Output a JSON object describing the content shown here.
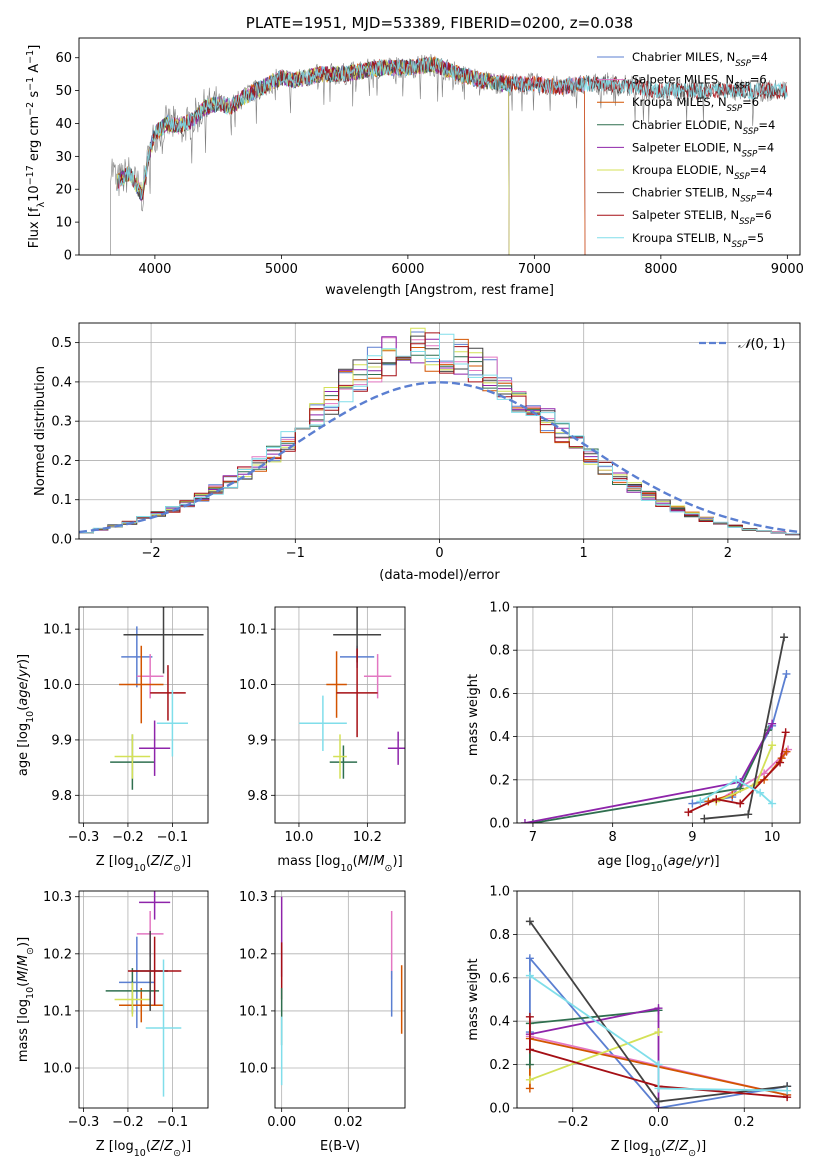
{
  "chart_data": [
    {
      "id": "spectrum",
      "type": "line",
      "title": "PLATE=1951, MJD=53389, FIBERID=0200, z=0.038",
      "xlabel": "wavelength [Angstrom, rest frame]",
      "ylabel": "Flux [f_λ 10^-17 erg cm^-2 s^-1 A^-1]",
      "xlim": [
        3400,
        9100
      ],
      "ylim": [
        0,
        66
      ],
      "xticks": [
        4000,
        5000,
        6000,
        7000,
        8000,
        9000
      ],
      "yticks": [
        0,
        10,
        20,
        30,
        40,
        50,
        60
      ],
      "observed_color": "#808080",
      "observed_range": [
        3650,
        9000
      ],
      "spectrum_anchors": {
        "x": [
          3650,
          3700,
          3800,
          3900,
          3950,
          4000,
          4100,
          4200,
          4300,
          4400,
          4500,
          4600,
          4700,
          4800,
          4900,
          5000,
          5100,
          5200,
          5300,
          5500,
          5800,
          6000,
          6200,
          6400,
          6600,
          6800,
          7000,
          7200,
          7400,
          7500,
          7600,
          8000,
          8500,
          9000
        ],
        "y": [
          28,
          22,
          25,
          18,
          30,
          37,
          40,
          39,
          41,
          45,
          46,
          45,
          48,
          50,
          52,
          54,
          53,
          54,
          55,
          55,
          57,
          57,
          58,
          55,
          53,
          52,
          52,
          51,
          52,
          52,
          52,
          50,
          50,
          50
        ]
      },
      "model_coverage": [
        {
          "name": "Chabrier MILES",
          "xmax": 7400
        },
        {
          "name": "Salpeter MILES",
          "xmax": 7400
        },
        {
          "name": "Kroupa MILES",
          "xmax": 7400
        },
        {
          "name": "Chabrier ELODIE",
          "xmax": 6800
        },
        {
          "name": "Salpeter ELODIE",
          "xmax": 6800
        },
        {
          "name": "Kroupa ELODIE",
          "xmax": 6800
        },
        {
          "name": "Chabrier STELIB",
          "xmax": 9000
        },
        {
          "name": "Salpeter STELIB",
          "xmax": 9000
        },
        {
          "name": "Kroupa STELIB",
          "xmax": 9000
        }
      ],
      "legend": [
        "Chabrier MILES, N_SSP=4",
        "Salpeter MILES, N_SSP=6",
        "Kroupa MILES, N_SSP=6",
        "Chabrier ELODIE, N_SSP=4",
        "Salpeter ELODIE, N_SSP=4",
        "Kroupa ELODIE, N_SSP=4",
        "Chabrier STELIB, N_SSP=4",
        "Salpeter STELIB, N_SSP=6",
        "Kroupa STELIB, N_SSP=5"
      ],
      "legend_placement": "top-right",
      "grid": false
    },
    {
      "id": "residuals",
      "type": "line",
      "xlabel": "(data-model)/error",
      "ylabel": "Normed distribution",
      "xlim": [
        -2.5,
        2.5
      ],
      "ylim": [
        0,
        0.55
      ],
      "xticks": [
        -2,
        -1,
        0,
        1,
        2
      ],
      "yticks": [
        0.0,
        0.1,
        0.2,
        0.3,
        0.4,
        0.5
      ],
      "grid": true,
      "legend": [
        "N(0,1)"
      ],
      "legend_placement": "top-right",
      "bin_edges_start": -2.5,
      "bin_width": 0.1,
      "histogram_base": [
        0.018,
        0.025,
        0.033,
        0.042,
        0.052,
        0.063,
        0.076,
        0.091,
        0.107,
        0.125,
        0.146,
        0.168,
        0.193,
        0.22,
        0.25,
        0.285,
        0.32,
        0.355,
        0.39,
        0.42,
        0.445,
        0.465,
        0.48,
        0.49,
        0.48,
        0.47,
        0.46,
        0.44,
        0.42,
        0.39,
        0.36,
        0.33,
        0.3,
        0.27,
        0.24,
        0.21,
        0.18,
        0.155,
        0.13,
        0.11,
        0.092,
        0.076,
        0.062,
        0.05,
        0.04,
        0.032,
        0.025,
        0.02,
        0.016,
        0.012
      ]
    },
    {
      "id": "z-vs-age",
      "type": "scatter",
      "xlabel": "Z [log10(Z/Z_sun)]",
      "ylabel": "age [log10(age/yr)]",
      "xlim": [
        -0.31,
        -0.02
      ],
      "ylim": [
        9.75,
        10.14
      ],
      "xticks": [
        -0.3,
        -0.2,
        -0.1
      ],
      "yticks": [
        9.8,
        9.9,
        10.0,
        10.1
      ],
      "grid": true,
      "points": [
        {
          "x": -0.18,
          "y": 10.05,
          "xerr": 0.035,
          "yerr": 0.055,
          "series": 0
        },
        {
          "x": -0.15,
          "y": 10.015,
          "xerr": 0.03,
          "yerr": 0.04,
          "series": 1
        },
        {
          "x": -0.17,
          "y": 10.0,
          "xerr": 0.05,
          "yerr": 0.07,
          "series": 2
        },
        {
          "x": -0.19,
          "y": 9.86,
          "xerr": 0.05,
          "yerr": 0.05,
          "series": 3
        },
        {
          "x": -0.14,
          "y": 9.885,
          "xerr": 0.035,
          "yerr": 0.05,
          "series": 4
        },
        {
          "x": -0.19,
          "y": 9.87,
          "xerr": 0.04,
          "yerr": 0.04,
          "series": 5
        },
        {
          "x": -0.12,
          "y": 10.09,
          "xerr": 0.09,
          "yerr": 0.07,
          "series": 6
        },
        {
          "x": -0.11,
          "y": 9.985,
          "xerr": 0.04,
          "yerr": 0.05,
          "series": 7
        },
        {
          "x": -0.1,
          "y": 9.93,
          "xerr": 0.035,
          "yerr": 0.06,
          "series": 8
        }
      ]
    },
    {
      "id": "mass-vs-age",
      "type": "scatter",
      "xlabel": "mass [log10(M/M_sun)]",
      "ylabel": "",
      "xlim": [
        9.93,
        10.31
      ],
      "ylim": [
        9.75,
        10.14
      ],
      "xticks": [
        10.0,
        10.2
      ],
      "yticks": [
        9.8,
        9.9,
        10.0,
        10.1
      ],
      "grid": true,
      "points": [
        {
          "x": 10.17,
          "y": 10.05,
          "xerr": 0.05,
          "yerr": 0.02,
          "series": 0
        },
        {
          "x": 10.23,
          "y": 10.015,
          "xerr": 0.04,
          "yerr": 0.04,
          "series": 1
        },
        {
          "x": 10.11,
          "y": 10.0,
          "xerr": 0.03,
          "yerr": 0.06,
          "series": 2
        },
        {
          "x": 10.13,
          "y": 9.86,
          "xerr": 0.04,
          "yerr": 0.03,
          "series": 3
        },
        {
          "x": 10.29,
          "y": 9.885,
          "xerr": 0.03,
          "yerr": 0.03,
          "series": 4
        },
        {
          "x": 10.12,
          "y": 9.87,
          "xerr": 0.02,
          "yerr": 0.04,
          "series": 5
        },
        {
          "x": 10.17,
          "y": 10.09,
          "xerr": 0.07,
          "yerr": 0.05,
          "series": 6
        },
        {
          "x": 10.17,
          "y": 9.985,
          "xerr": 0.06,
          "yerr": 0.08,
          "series": 7
        },
        {
          "x": 10.07,
          "y": 9.93,
          "xerr": 0.07,
          "yerr": 0.05,
          "series": 8
        }
      ]
    },
    {
      "id": "age-weights",
      "type": "line",
      "xlabel": "age [log10(age/yr)]",
      "ylabel": "mass weight",
      "xlim": [
        6.8,
        10.35
      ],
      "ylim": [
        0,
        1.0
      ],
      "xticks": [
        7,
        8,
        9,
        10
      ],
      "yticks": [
        0.0,
        0.2,
        0.4,
        0.6,
        0.8,
        1.0
      ],
      "grid": true,
      "series": [
        {
          "x": [
            9.0,
            9.5,
            10.0,
            10.18
          ],
          "y": [
            0.09,
            0.12,
            0.45,
            0.69
          ],
          "ref": 0
        },
        {
          "x": [
            9.3,
            9.9,
            10.15,
            10.2
          ],
          "y": [
            0.1,
            0.23,
            0.32,
            0.34
          ],
          "ref": 1
        },
        {
          "x": [
            9.2,
            9.5,
            9.9,
            10.12,
            10.18
          ],
          "y": [
            0.1,
            0.13,
            0.2,
            0.3,
            0.33
          ],
          "ref": 2
        },
        {
          "x": [
            7.0,
            9.6,
            9.95
          ],
          "y": [
            0.0,
            0.16,
            0.43
          ],
          "ref": 3
        },
        {
          "x": [
            6.9,
            9.6,
            10.0
          ],
          "y": [
            0.0,
            0.19,
            0.46
          ],
          "ref": 4
        },
        {
          "x": [
            9.3,
            9.8,
            10.0
          ],
          "y": [
            0.1,
            0.18,
            0.36
          ],
          "ref": 5
        },
        {
          "x": [
            9.15,
            9.7,
            10.15
          ],
          "y": [
            0.02,
            0.04,
            0.86
          ],
          "ref": 6
        },
        {
          "x": [
            8.95,
            9.3,
            9.6,
            10.1,
            10.17
          ],
          "y": [
            0.05,
            0.11,
            0.09,
            0.28,
            0.42
          ],
          "ref": 7
        },
        {
          "x": [
            9.1,
            9.55,
            9.85,
            10.0
          ],
          "y": [
            0.1,
            0.2,
            0.14,
            0.09
          ],
          "ref": 8
        }
      ]
    },
    {
      "id": "z-vs-mass",
      "type": "scatter",
      "xlabel": "Z [log10(Z/Z_sun)]",
      "ylabel": "mass [log10(M/M_sun)]",
      "xlim": [
        -0.31,
        -0.02
      ],
      "ylim": [
        9.93,
        10.31
      ],
      "xticks": [
        -0.3,
        -0.2,
        -0.1
      ],
      "yticks": [
        10.0,
        10.1,
        10.2,
        10.3
      ],
      "grid": true,
      "points": [
        {
          "x": -0.18,
          "y": 10.15,
          "xerr": 0.04,
          "yerr": 0.08,
          "series": 0
        },
        {
          "x": -0.15,
          "y": 10.235,
          "xerr": 0.03,
          "yerr": 0.04,
          "series": 1
        },
        {
          "x": -0.17,
          "y": 10.11,
          "xerr": 0.05,
          "yerr": 0.03,
          "series": 2
        },
        {
          "x": -0.19,
          "y": 10.135,
          "xerr": 0.06,
          "yerr": 0.04,
          "series": 3
        },
        {
          "x": -0.14,
          "y": 10.29,
          "xerr": 0.035,
          "yerr": 0.03,
          "series": 4
        },
        {
          "x": -0.19,
          "y": 10.12,
          "xerr": 0.04,
          "yerr": 0.03,
          "series": 5
        },
        {
          "x": -0.15,
          "y": 10.17,
          "xerr": 0.04,
          "yerr": 0.07,
          "series": 6
        },
        {
          "x": -0.14,
          "y": 10.17,
          "xerr": 0.06,
          "yerr": 0.06,
          "series": 7
        },
        {
          "x": -0.12,
          "y": 10.07,
          "xerr": 0.04,
          "yerr": 0.12,
          "series": 8
        }
      ]
    },
    {
      "id": "ebv",
      "type": "scatter",
      "xlabel": "E(B-V)",
      "ylabel": "",
      "xlim": [
        -0.002,
        0.037
      ],
      "ylim": [
        9.93,
        10.31
      ],
      "xticks": [
        0.0,
        0.02
      ],
      "yticks": [
        10.0,
        10.1,
        10.2,
        10.3
      ],
      "grid": true,
      "points": [
        {
          "x": 0.0,
          "y": 10.23,
          "yerr": 0.07,
          "series": 4
        },
        {
          "x": 0.0,
          "y": 10.17,
          "yerr": 0.05,
          "series": 7
        },
        {
          "x": 0.0,
          "y": 10.09,
          "yerr": 0.05,
          "series": 3
        },
        {
          "x": 0.0,
          "y": 10.03,
          "yerr": 0.06,
          "series": 8
        },
        {
          "x": 0.033,
          "y": 10.215,
          "yerr": 0.06,
          "series": 1
        },
        {
          "x": 0.033,
          "y": 10.13,
          "yerr": 0.04,
          "series": 0
        },
        {
          "x": 0.036,
          "y": 10.12,
          "yerr": 0.06,
          "series": 2
        }
      ]
    },
    {
      "id": "z-weights",
      "type": "line",
      "xlabel": "Z [log10(Z/Z_sun)]",
      "ylabel": "mass weight",
      "xlim": [
        -0.33,
        0.33
      ],
      "ylim": [
        0,
        1.0
      ],
      "xticks": [
        -0.2,
        0.0,
        0.2
      ],
      "yticks": [
        0.0,
        0.2,
        0.4,
        0.6,
        0.8,
        1.0
      ],
      "grid": true,
      "series": [
        {
          "x": [
            -0.3,
            -0.3,
            0.0,
            0.3
          ],
          "y": [
            0.35,
            0.69,
            0.0,
            0.1
          ],
          "ref": 0
        },
        {
          "x": [
            -0.3,
            0.3
          ],
          "y": [
            0.33,
            0.06
          ],
          "ref": 1
        },
        {
          "x": [
            -0.3,
            -0.3,
            0.3
          ],
          "y": [
            0.09,
            0.32,
            0.06
          ],
          "ref": 2
        },
        {
          "x": [
            -0.3,
            -0.3,
            0.0
          ],
          "y": [
            0.2,
            0.39,
            0.45
          ],
          "ref": 3
        },
        {
          "x": [
            -0.3,
            0.0,
            0.0
          ],
          "y": [
            0.34,
            0.46,
            0.0
          ],
          "ref": 4
        },
        {
          "x": [
            -0.3,
            0.0
          ],
          "y": [
            0.13,
            0.35
          ],
          "ref": 5
        },
        {
          "x": [
            -0.3,
            0.0,
            0.3
          ],
          "y": [
            0.86,
            0.03,
            0.1
          ],
          "ref": 6
        },
        {
          "x": [
            -0.3,
            -0.3,
            0.0,
            0.3
          ],
          "y": [
            0.42,
            0.27,
            0.1,
            0.05
          ],
          "ref": 7
        },
        {
          "x": [
            -0.3,
            0.0,
            0.0,
            0.3
          ],
          "y": [
            0.61,
            0.2,
            0.09,
            0.08
          ],
          "ref": 8
        }
      ]
    }
  ],
  "series_colors": [
    "#5b7fd1",
    "#e377c2",
    "#d35400",
    "#2f6f4f",
    "#8e24aa",
    "#d4e157",
    "#424242",
    "#a50f15",
    "#80deea"
  ],
  "normal_curve_color": "#5b7fd1"
}
